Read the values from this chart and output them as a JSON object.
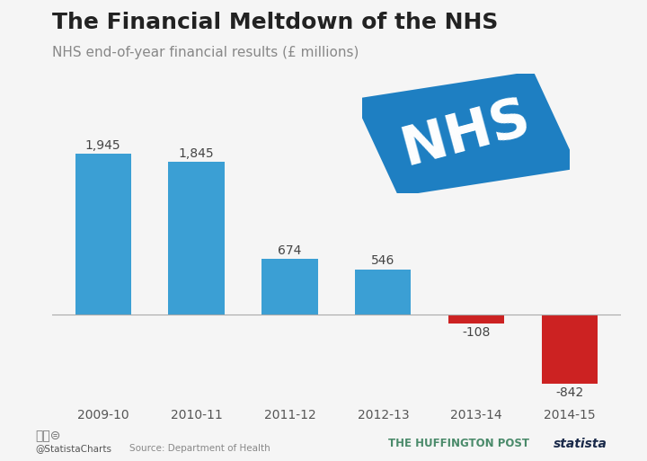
{
  "title": "The Financial Meltdown of the NHS",
  "subtitle": "NHS end-of-year financial results (£ millions)",
  "categories": [
    "2009-10",
    "2010-11",
    "2011-12",
    "2012-13",
    "2013-14",
    "2014-15"
  ],
  "values": [
    1945,
    1845,
    674,
    546,
    -108,
    -842
  ],
  "bar_colors": [
    "#3b9fd4",
    "#3b9fd4",
    "#3b9fd4",
    "#3b9fd4",
    "#cc2222",
    "#cc2222"
  ],
  "value_labels": [
    "1,945",
    "1,845",
    "674",
    "546",
    "-108",
    "-842"
  ],
  "background_color": "#f5f5f5",
  "title_fontsize": 18,
  "subtitle_fontsize": 11,
  "source_text": "Source: Department of Health",
  "footer_left": "@StatistaCharts",
  "footer_right": "THE HUFFINGTON POST",
  "ylim": [
    -1050,
    2300
  ],
  "nhs_logo_color": "#1e7fc2",
  "nhs_text_color": "#ffffff",
  "tick_fontsize": 10,
  "label_fontsize": 10
}
